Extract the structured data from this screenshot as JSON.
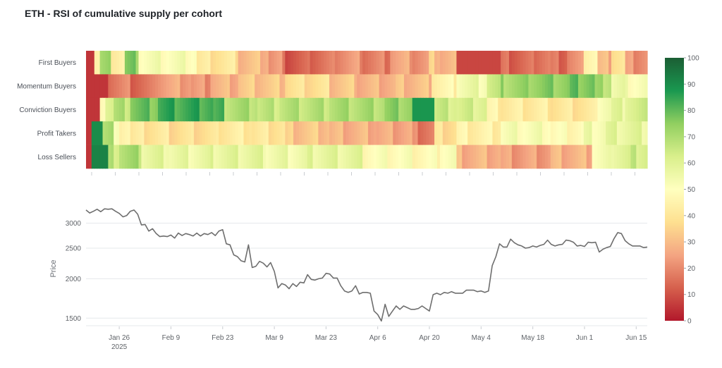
{
  "title": "ETH - RSI of cumulative supply per cohort",
  "chart_data": [
    {
      "type": "heatmap",
      "rows": [
        "First Buyers",
        "Momentum Buyers",
        "Conviction Buyers",
        "Profit Takers",
        "Loss Sellers"
      ],
      "x_start": "2025-01-17",
      "x_end": "2025-06-18",
      "colorbar": {
        "min": 0,
        "max": 100,
        "ticks": [
          0,
          10,
          20,
          30,
          40,
          50,
          60,
          70,
          80,
          90,
          100
        ],
        "colors": [
          "#b2182b",
          "#d6604d",
          "#f4a582",
          "#fee090",
          "#ffffbf",
          "#d9ef8b",
          "#91cf60",
          "#1a9850",
          "#1b5e34"
        ]
      },
      "segments": {
        "First Buyers": [
          [
            0,
            3,
            5
          ],
          [
            3,
            5,
            45
          ],
          [
            5,
            9,
            70
          ],
          [
            9,
            14,
            45
          ],
          [
            14,
            19,
            75
          ],
          [
            19,
            40,
            52
          ],
          [
            40,
            55,
            40
          ],
          [
            55,
            66,
            30
          ],
          [
            66,
            71,
            22
          ],
          [
            71,
            81,
            12
          ],
          [
            81,
            90,
            16
          ],
          [
            90,
            100,
            22
          ],
          [
            100,
            110,
            18
          ],
          [
            110,
            118,
            25
          ],
          [
            118,
            124,
            22
          ],
          [
            124,
            128,
            32
          ],
          [
            128,
            134,
            28
          ],
          [
            134,
            150,
            8
          ],
          [
            150,
            162,
            14
          ],
          [
            162,
            168,
            18
          ],
          [
            168,
            174,
            15
          ],
          [
            174,
            180,
            20
          ],
          [
            180,
            185,
            48
          ],
          [
            185,
            190,
            28
          ],
          [
            190,
            195,
            40
          ],
          [
            195,
            203,
            22
          ]
        ],
        "Momentum Buyers": [
          [
            0,
            8,
            5
          ],
          [
            8,
            16,
            18
          ],
          [
            16,
            25,
            15
          ],
          [
            25,
            38,
            25
          ],
          [
            38,
            45,
            22
          ],
          [
            45,
            55,
            28
          ],
          [
            55,
            72,
            32
          ],
          [
            72,
            88,
            38
          ],
          [
            88,
            98,
            32
          ],
          [
            98,
            112,
            28
          ],
          [
            112,
            125,
            30
          ],
          [
            125,
            134,
            45
          ],
          [
            134,
            145,
            55
          ],
          [
            145,
            150,
            64
          ],
          [
            150,
            160,
            72
          ],
          [
            160,
            175,
            75
          ],
          [
            175,
            184,
            78
          ],
          [
            184,
            190,
            70
          ],
          [
            190,
            195,
            55
          ],
          [
            195,
            203,
            52
          ]
        ],
        "Conviction Buyers": [
          [
            0,
            5,
            5
          ],
          [
            5,
            7,
            52
          ],
          [
            7,
            10,
            62
          ],
          [
            10,
            16,
            68
          ],
          [
            16,
            26,
            78
          ],
          [
            26,
            46,
            84
          ],
          [
            46,
            50,
            80
          ],
          [
            50,
            62,
            70
          ],
          [
            62,
            70,
            66
          ],
          [
            70,
            88,
            68
          ],
          [
            88,
            108,
            70
          ],
          [
            108,
            118,
            74
          ],
          [
            118,
            126,
            88
          ],
          [
            126,
            134,
            64
          ],
          [
            134,
            145,
            62
          ],
          [
            145,
            150,
            44
          ],
          [
            150,
            168,
            42
          ],
          [
            168,
            185,
            40
          ],
          [
            185,
            190,
            55
          ],
          [
            190,
            195,
            58
          ],
          [
            195,
            203,
            62
          ]
        ],
        "Profit Takers": [
          [
            0,
            2,
            5
          ],
          [
            2,
            6,
            90
          ],
          [
            6,
            10,
            70
          ],
          [
            10,
            16,
            48
          ],
          [
            16,
            30,
            40
          ],
          [
            30,
            48,
            38
          ],
          [
            48,
            60,
            42
          ],
          [
            60,
            72,
            40
          ],
          [
            72,
            88,
            32
          ],
          [
            88,
            105,
            28
          ],
          [
            105,
            118,
            26
          ],
          [
            118,
            126,
            18
          ],
          [
            126,
            134,
            38
          ],
          [
            134,
            150,
            44
          ],
          [
            150,
            168,
            52
          ],
          [
            168,
            180,
            48
          ],
          [
            180,
            188,
            54
          ],
          [
            188,
            195,
            58
          ],
          [
            195,
            203,
            58
          ]
        ],
        "Loss Sellers": [
          [
            0,
            2,
            5
          ],
          [
            2,
            8,
            92
          ],
          [
            8,
            12,
            66
          ],
          [
            12,
            20,
            70
          ],
          [
            20,
            30,
            58
          ],
          [
            30,
            45,
            56
          ],
          [
            45,
            65,
            58
          ],
          [
            65,
            80,
            55
          ],
          [
            80,
            100,
            58
          ],
          [
            100,
            118,
            50
          ],
          [
            118,
            128,
            48
          ],
          [
            128,
            134,
            52
          ],
          [
            134,
            150,
            28
          ],
          [
            150,
            168,
            24
          ],
          [
            168,
            183,
            28
          ],
          [
            183,
            190,
            52
          ],
          [
            190,
            197,
            60
          ],
          [
            197,
            203,
            64
          ]
        ]
      }
    },
    {
      "type": "line",
      "ylabel": "Price",
      "xlim": [
        "2025-01-17",
        "2025-06-18"
      ],
      "ylim_log": [
        1420,
        3420
      ],
      "yticks": [
        1500,
        2000,
        2500,
        3000
      ],
      "xticks": [
        {
          "date": "2025-01-26",
          "label": "Jan 26",
          "sub": "2025"
        },
        {
          "date": "2025-02-09",
          "label": "Feb 9"
        },
        {
          "date": "2025-02-23",
          "label": "Feb 23"
        },
        {
          "date": "2025-03-09",
          "label": "Mar 9"
        },
        {
          "date": "2025-03-23",
          "label": "Mar 23"
        },
        {
          "date": "2025-04-06",
          "label": "Apr 6"
        },
        {
          "date": "2025-04-20",
          "label": "Apr 20"
        },
        {
          "date": "2025-05-04",
          "label": "May 4"
        },
        {
          "date": "2025-05-18",
          "label": "May 18"
        },
        {
          "date": "2025-06-01",
          "label": "Jun 1"
        },
        {
          "date": "2025-06-15",
          "label": "Jun 15"
        }
      ],
      "points": [
        [
          "2025-01-17",
          3300
        ],
        [
          "2025-01-18",
          3230
        ],
        [
          "2025-01-19",
          3270
        ],
        [
          "2025-01-20",
          3320
        ],
        [
          "2025-01-21",
          3260
        ],
        [
          "2025-01-22",
          3330
        ],
        [
          "2025-01-23",
          3320
        ],
        [
          "2025-01-24",
          3330
        ],
        [
          "2025-01-25",
          3270
        ],
        [
          "2025-01-26",
          3220
        ],
        [
          "2025-01-27",
          3140
        ],
        [
          "2025-01-28",
          3170
        ],
        [
          "2025-01-29",
          3270
        ],
        [
          "2025-01-30",
          3300
        ],
        [
          "2025-01-31",
          3200
        ],
        [
          "2025-02-01",
          2960
        ],
        [
          "2025-02-02",
          2970
        ],
        [
          "2025-02-03",
          2830
        ],
        [
          "2025-02-04",
          2880
        ],
        [
          "2025-02-05",
          2780
        ],
        [
          "2025-02-06",
          2720
        ],
        [
          "2025-02-07",
          2730
        ],
        [
          "2025-02-08",
          2720
        ],
        [
          "2025-02-09",
          2750
        ],
        [
          "2025-02-10",
          2690
        ],
        [
          "2025-02-11",
          2790
        ],
        [
          "2025-02-12",
          2740
        ],
        [
          "2025-02-13",
          2780
        ],
        [
          "2025-02-14",
          2760
        ],
        [
          "2025-02-15",
          2730
        ],
        [
          "2025-02-16",
          2790
        ],
        [
          "2025-02-17",
          2730
        ],
        [
          "2025-02-18",
          2780
        ],
        [
          "2025-02-19",
          2760
        ],
        [
          "2025-02-20",
          2800
        ],
        [
          "2025-02-21",
          2740
        ],
        [
          "2025-02-22",
          2830
        ],
        [
          "2025-02-23",
          2860
        ],
        [
          "2025-02-24",
          2580
        ],
        [
          "2025-02-25",
          2560
        ],
        [
          "2025-02-26",
          2380
        ],
        [
          "2025-02-27",
          2350
        ],
        [
          "2025-02-28",
          2280
        ],
        [
          "2025-03-01",
          2260
        ],
        [
          "2025-03-02",
          2560
        ],
        [
          "2025-03-03",
          2170
        ],
        [
          "2025-03-04",
          2190
        ],
        [
          "2025-03-05",
          2270
        ],
        [
          "2025-03-06",
          2240
        ],
        [
          "2025-03-07",
          2180
        ],
        [
          "2025-03-08",
          2250
        ],
        [
          "2025-03-09",
          2110
        ],
        [
          "2025-03-10",
          1870
        ],
        [
          "2025-03-11",
          1930
        ],
        [
          "2025-03-12",
          1910
        ],
        [
          "2025-03-13",
          1860
        ],
        [
          "2025-03-14",
          1930
        ],
        [
          "2025-03-15",
          1890
        ],
        [
          "2025-03-16",
          1950
        ],
        [
          "2025-03-17",
          1940
        ],
        [
          "2025-03-18",
          2060
        ],
        [
          "2025-03-19",
          1990
        ],
        [
          "2025-03-20",
          1980
        ],
        [
          "2025-03-21",
          2000
        ],
        [
          "2025-03-22",
          2010
        ],
        [
          "2025-03-23",
          2080
        ],
        [
          "2025-03-24",
          2070
        ],
        [
          "2025-03-25",
          2010
        ],
        [
          "2025-03-26",
          2010
        ],
        [
          "2025-03-27",
          1900
        ],
        [
          "2025-03-28",
          1830
        ],
        [
          "2025-03-29",
          1810
        ],
        [
          "2025-03-30",
          1830
        ],
        [
          "2025-03-31",
          1900
        ],
        [
          "2025-04-01",
          1790
        ],
        [
          "2025-04-02",
          1810
        ],
        [
          "2025-04-03",
          1810
        ],
        [
          "2025-04-04",
          1800
        ],
        [
          "2025-04-05",
          1580
        ],
        [
          "2025-04-06",
          1540
        ],
        [
          "2025-04-07",
          1470
        ],
        [
          "2025-04-08",
          1660
        ],
        [
          "2025-04-09",
          1520
        ],
        [
          "2025-04-10",
          1580
        ],
        [
          "2025-04-11",
          1640
        ],
        [
          "2025-04-12",
          1600
        ],
        [
          "2025-04-13",
          1640
        ],
        [
          "2025-04-14",
          1620
        ],
        [
          "2025-04-15",
          1600
        ],
        [
          "2025-04-16",
          1600
        ],
        [
          "2025-04-17",
          1610
        ],
        [
          "2025-04-18",
          1640
        ],
        [
          "2025-04-19",
          1610
        ],
        [
          "2025-04-20",
          1580
        ],
        [
          "2025-04-21",
          1780
        ],
        [
          "2025-04-22",
          1800
        ],
        [
          "2025-04-23",
          1780
        ],
        [
          "2025-04-24",
          1810
        ],
        [
          "2025-04-25",
          1800
        ],
        [
          "2025-04-26",
          1820
        ],
        [
          "2025-04-27",
          1800
        ],
        [
          "2025-04-28",
          1800
        ],
        [
          "2025-04-29",
          1800
        ],
        [
          "2025-04-30",
          1840
        ],
        [
          "2025-05-01",
          1840
        ],
        [
          "2025-05-02",
          1840
        ],
        [
          "2025-05-03",
          1820
        ],
        [
          "2025-05-04",
          1830
        ],
        [
          "2025-05-05",
          1810
        ],
        [
          "2025-05-06",
          1830
        ],
        [
          "2025-05-07",
          2200
        ],
        [
          "2025-05-08",
          2350
        ],
        [
          "2025-05-09",
          2580
        ],
        [
          "2025-05-10",
          2520
        ],
        [
          "2025-05-11",
          2520
        ],
        [
          "2025-05-12",
          2670
        ],
        [
          "2025-05-13",
          2600
        ],
        [
          "2025-05-14",
          2560
        ],
        [
          "2025-05-15",
          2540
        ],
        [
          "2025-05-16",
          2500
        ],
        [
          "2025-05-17",
          2510
        ],
        [
          "2025-05-18",
          2540
        ],
        [
          "2025-05-19",
          2520
        ],
        [
          "2025-05-20",
          2550
        ],
        [
          "2025-05-21",
          2570
        ],
        [
          "2025-05-22",
          2650
        ],
        [
          "2025-05-23",
          2570
        ],
        [
          "2025-05-24",
          2540
        ],
        [
          "2025-05-25",
          2560
        ],
        [
          "2025-05-26",
          2570
        ],
        [
          "2025-05-27",
          2650
        ],
        [
          "2025-05-28",
          2640
        ],
        [
          "2025-05-29",
          2610
        ],
        [
          "2025-05-30",
          2540
        ],
        [
          "2025-05-31",
          2550
        ],
        [
          "2025-06-01",
          2530
        ],
        [
          "2025-06-02",
          2610
        ],
        [
          "2025-06-03",
          2600
        ],
        [
          "2025-06-04",
          2610
        ],
        [
          "2025-06-05",
          2430
        ],
        [
          "2025-06-06",
          2480
        ],
        [
          "2025-06-07",
          2510
        ],
        [
          "2025-06-08",
          2530
        ],
        [
          "2025-06-09",
          2680
        ],
        [
          "2025-06-10",
          2800
        ],
        [
          "2025-06-11",
          2780
        ],
        [
          "2025-06-12",
          2640
        ],
        [
          "2025-06-13",
          2580
        ],
        [
          "2025-06-14",
          2540
        ],
        [
          "2025-06-15",
          2540
        ],
        [
          "2025-06-16",
          2540
        ],
        [
          "2025-06-17",
          2510
        ],
        [
          "2025-06-18",
          2520
        ]
      ]
    }
  ]
}
